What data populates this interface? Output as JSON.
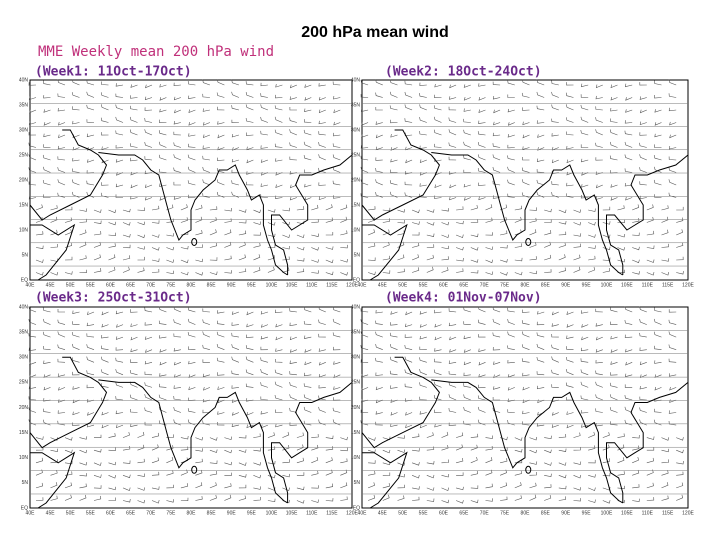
{
  "title": "200  hPa  mean wind",
  "subtitle": "MME Weekly mean 200 hPa wind",
  "panels": [
    {
      "label": "(Week1: 11Oct-17Oct)"
    },
    {
      "label": "(Week2: 18Oct-24Oct)"
    },
    {
      "label": "(Week3: 25Oct-31Oct)"
    },
    {
      "label": "(Week4: 01Nov-07Nov)"
    }
  ],
  "lat_labels": [
    "40N",
    "35N",
    "30N",
    "25N",
    "20N",
    "15N",
    "10N",
    "5N",
    "EQ"
  ],
  "lon_labels": [
    "40E",
    "45E",
    "50E",
    "55E",
    "60E",
    "65E",
    "70E",
    "75E",
    "80E",
    "85E",
    "90E",
    "95E",
    "100E",
    "105E",
    "110E",
    "115E",
    "120E"
  ]
}
